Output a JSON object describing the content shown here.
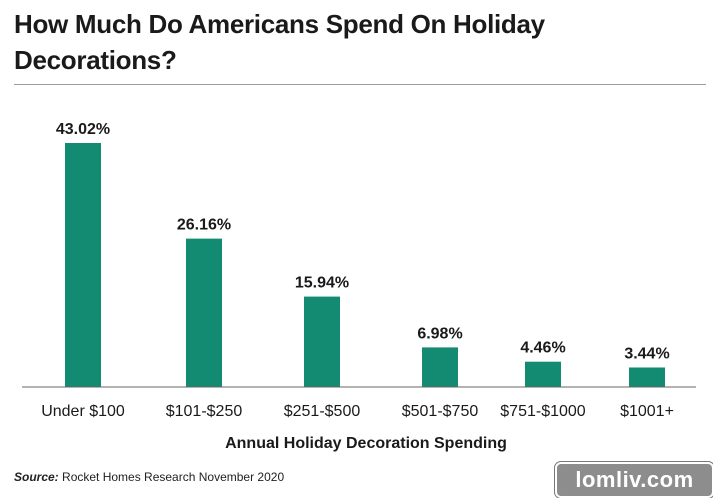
{
  "title": "How Much Do Americans Spend On Holiday Decorations?",
  "source_prefix": "Source:",
  "source_text": " Rocket Homes Research November 2020",
  "watermark": "lomliv.com",
  "colors": {
    "bar": "#138a72",
    "axis": "#666666",
    "text": "#1a1a1a"
  },
  "chart_data": {
    "type": "bar",
    "categories": [
      "Under $100",
      "$101-$250",
      "$251-$500",
      "$501-$750",
      "$751-$1000",
      "$1001+"
    ],
    "values": [
      43.02,
      26.16,
      15.94,
      6.98,
      4.46,
      3.44
    ],
    "data_labels": [
      "43.02%",
      "26.16%",
      "15.94%",
      "6.98%",
      "4.46%",
      "3.44%"
    ],
    "xlabel": "Annual Holiday Decoration Spending",
    "ylabel": "",
    "ylim": [
      0,
      43.02
    ],
    "grid": false,
    "legend": "none"
  }
}
